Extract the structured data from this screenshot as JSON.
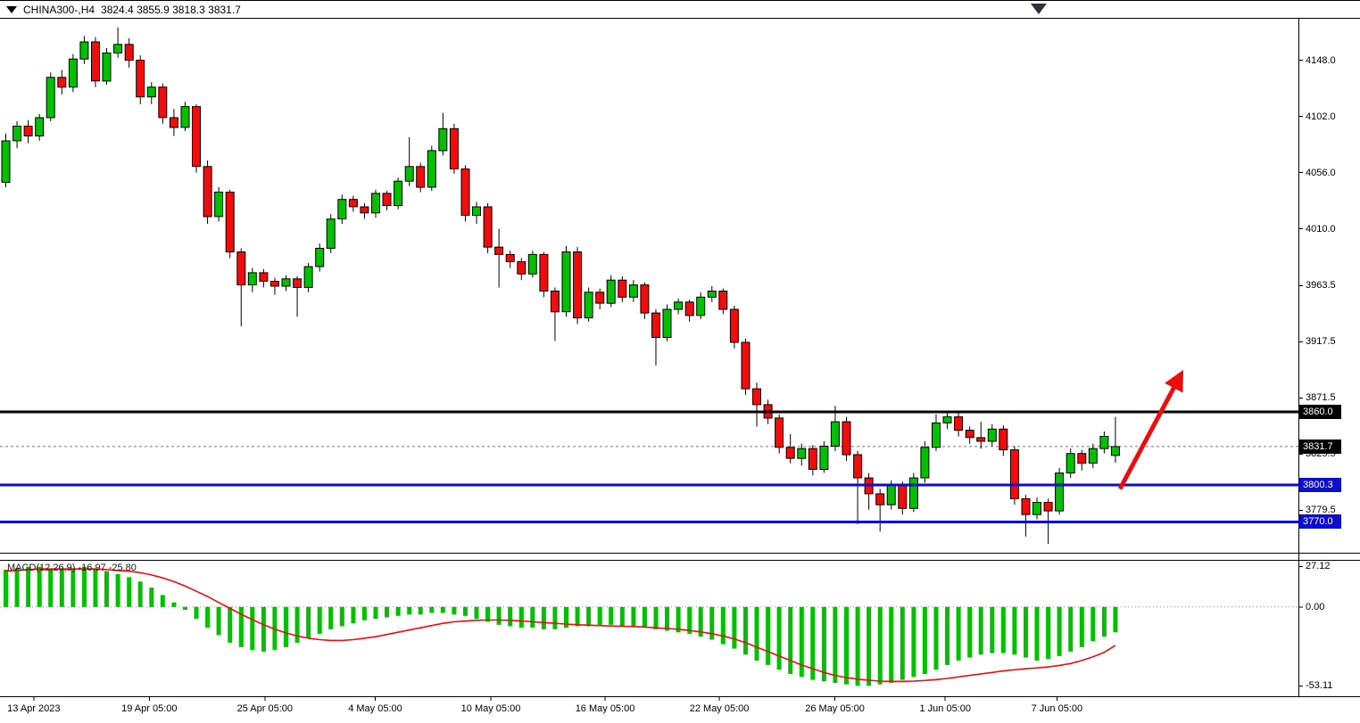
{
  "header": {
    "symbol": "CHINA300-,H4",
    "ohlc_text": "3824.4 3855.9 3818.3 3831.7"
  },
  "chart_data": [
    {
      "type": "candlestick",
      "title": "CHINA300-,H4",
      "ylim": [
        3744,
        4182
      ],
      "y_ticks": [
        4148.0,
        4102.0,
        4056.0,
        4010.0,
        3963.5,
        3917.5,
        3871.5,
        3825.5,
        3779.5
      ],
      "x_labels": [
        {
          "text": "13 Apr 2023",
          "pos": 0.026
        },
        {
          "text": "19 Apr 05:00",
          "pos": 0.115
        },
        {
          "text": "25 Apr 05:00",
          "pos": 0.204
        },
        {
          "text": "4 May 05:00",
          "pos": 0.289
        },
        {
          "text": "10 May 05:00",
          "pos": 0.378
        },
        {
          "text": "16 May 05:00",
          "pos": 0.466
        },
        {
          "text": "22 May 05:00",
          "pos": 0.554
        },
        {
          "text": "26 May 05:00",
          "pos": 0.643
        },
        {
          "text": "1 Jun 05:00",
          "pos": 0.728
        },
        {
          "text": "7 Jun 05:00",
          "pos": 0.814
        }
      ],
      "candles": [
        [
          4048,
          4088,
          4044,
          4082
        ],
        [
          4082,
          4098,
          4076,
          4094
        ],
        [
          4094,
          4099,
          4080,
          4086
        ],
        [
          4086,
          4104,
          4082,
          4101
        ],
        [
          4101,
          4138,
          4098,
          4134
        ],
        [
          4134,
          4140,
          4120,
          4126
        ],
        [
          4126,
          4153,
          4122,
          4149
        ],
        [
          4149,
          4168,
          4145,
          4163
        ],
        [
          4163,
          4167,
          4126,
          4131
        ],
        [
          4131,
          4158,
          4128,
          4154
        ],
        [
          4154,
          4175,
          4150,
          4161
        ],
        [
          4161,
          4166,
          4142,
          4148
        ],
        [
          4148,
          4152,
          4112,
          4118
        ],
        [
          4118,
          4130,
          4112,
          4126
        ],
        [
          4126,
          4129,
          4096,
          4101
        ],
        [
          4101,
          4108,
          4086,
          4093
        ],
        [
          4093,
          4114,
          4090,
          4110
        ],
        [
          4110,
          4112,
          4056,
          4061
        ],
        [
          4061,
          4066,
          4014,
          4020
        ],
        [
          4020,
          4044,
          4016,
          4040
        ],
        [
          4040,
          4042,
          3986,
          3991
        ],
        [
          3991,
          3994,
          3930,
          3964
        ],
        [
          3964,
          3978,
          3958,
          3974
        ],
        [
          3974,
          3977,
          3962,
          3967
        ],
        [
          3967,
          3970,
          3956,
          3963
        ],
        [
          3963,
          3972,
          3959,
          3969
        ],
        [
          3969,
          3971,
          3938,
          3962
        ],
        [
          3962,
          3982,
          3958,
          3979
        ],
        [
          3979,
          3998,
          3975,
          3994
        ],
        [
          3994,
          4022,
          3990,
          4018
        ],
        [
          4018,
          4038,
          4014,
          4034
        ],
        [
          4034,
          4037,
          4024,
          4028
        ],
        [
          4028,
          4031,
          4018,
          4023
        ],
        [
          4023,
          4042,
          4019,
          4039
        ],
        [
          4039,
          4041,
          4025,
          4029
        ],
        [
          4029,
          4052,
          4026,
          4049
        ],
        [
          4049,
          4085,
          4045,
          4061
        ],
        [
          4061,
          4064,
          4040,
          4044
        ],
        [
          4044,
          4078,
          4041,
          4074
        ],
        [
          4074,
          4105,
          4070,
          4092
        ],
        [
          4092,
          4096,
          4055,
          4059
        ],
        [
          4059,
          4062,
          4016,
          4021
        ],
        [
          4021,
          4032,
          4014,
          4028
        ],
        [
          4028,
          4031,
          3990,
          3995
        ],
        [
          3995,
          4010,
          3962,
          3989
        ],
        [
          3989,
          3992,
          3978,
          3983
        ],
        [
          3983,
          3986,
          3968,
          3973
        ],
        [
          3973,
          3992,
          3970,
          3989
        ],
        [
          3989,
          3991,
          3954,
          3959
        ],
        [
          3959,
          3962,
          3918,
          3942
        ],
        [
          3942,
          3996,
          3938,
          3991
        ],
        [
          3991,
          3995,
          3932,
          3937
        ],
        [
          3937,
          3962,
          3934,
          3958
        ],
        [
          3958,
          3961,
          3944,
          3949
        ],
        [
          3949,
          3972,
          3946,
          3968
        ],
        [
          3968,
          3971,
          3950,
          3954
        ],
        [
          3954,
          3968,
          3950,
          3964
        ],
        [
          3964,
          3966,
          3936,
          3941
        ],
        [
          3941,
          3944,
          3898,
          3921
        ],
        [
          3921,
          3948,
          3918,
          3944
        ],
        [
          3944,
          3953,
          3940,
          3950
        ],
        [
          3950,
          3952,
          3934,
          3939
        ],
        [
          3939,
          3958,
          3936,
          3954
        ],
        [
          3954,
          3963,
          3950,
          3959
        ],
        [
          3959,
          3961,
          3940,
          3944
        ],
        [
          3944,
          3947,
          3912,
          3917
        ],
        [
          3917,
          3920,
          3874,
          3879
        ],
        [
          3879,
          3884,
          3848,
          3866
        ],
        [
          3866,
          3870,
          3850,
          3855
        ],
        [
          3855,
          3858,
          3826,
          3831
        ],
        [
          3831,
          3842,
          3818,
          3822
        ],
        [
          3822,
          3834,
          3816,
          3830
        ],
        [
          3830,
          3833,
          3808,
          3813
        ],
        [
          3813,
          3836,
          3810,
          3832
        ],
        [
          3832,
          3865,
          3828,
          3852
        ],
        [
          3852,
          3856,
          3820,
          3825
        ],
        [
          3825,
          3828,
          3768,
          3806
        ],
        [
          3806,
          3810,
          3780,
          3793
        ],
        [
          3793,
          3797,
          3762,
          3784
        ],
        [
          3784,
          3804,
          3780,
          3800
        ],
        [
          3800,
          3803,
          3776,
          3781
        ],
        [
          3781,
          3810,
          3778,
          3806
        ],
        [
          3806,
          3836,
          3802,
          3831
        ],
        [
          3831,
          3858,
          3828,
          3851
        ],
        [
          3851,
          3861,
          3846,
          3856
        ],
        [
          3856,
          3859,
          3840,
          3845
        ],
        [
          3845,
          3848,
          3834,
          3839
        ],
        [
          3839,
          3852,
          3830,
          3836
        ],
        [
          3836,
          3850,
          3832,
          3846
        ],
        [
          3846,
          3849,
          3824,
          3829
        ],
        [
          3829,
          3832,
          3784,
          3789
        ],
        [
          3789,
          3792,
          3758,
          3776
        ],
        [
          3776,
          3790,
          3772,
          3786
        ],
        [
          3786,
          3789,
          3752,
          3779
        ],
        [
          3779,
          3814,
          3776,
          3810
        ],
        [
          3810,
          3830,
          3806,
          3826
        ],
        [
          3826,
          3829,
          3812,
          3818
        ],
        [
          3818,
          3834,
          3814,
          3830
        ],
        [
          3830,
          3844,
          3826,
          3840
        ],
        [
          3824.4,
          3855.9,
          3818.3,
          3831.7
        ]
      ],
      "hlines": [
        {
          "value": 3860.0,
          "label": "3860.0",
          "color": "#000000",
          "width": 3
        },
        {
          "value": 3800.3,
          "label": "3800.3",
          "color": "#0d0dd0",
          "width": 3
        },
        {
          "value": 3770.0,
          "label": "3770.0",
          "color": "#0d0dd0",
          "width": 3
        }
      ],
      "price_tag": {
        "value": 3831.7,
        "label": "3831.7",
        "bg": "#000000"
      },
      "bid_line_value": 3831.7,
      "arrow": {
        "from_index": 99.4,
        "from_price": 3797,
        "to_index": 104.8,
        "to_price": 3890,
        "color": "#ee0c0c",
        "width": 5
      },
      "colors": {
        "up": "#00c000",
        "down": "#f20c0c",
        "wick": "#000000"
      }
    },
    {
      "type": "macd",
      "label": "MACD(12,26,9)",
      "values_text": "-16.97 -25.80",
      "macd_value": -16.97,
      "signal_value": -25.8,
      "ylim": [
        -60,
        31
      ],
      "y_ticks": [
        {
          "v": 27.12,
          "label": "27.12"
        },
        {
          "v": 0,
          "label": "0.00"
        },
        {
          "v": -53.11,
          "label": "-53.11"
        }
      ],
      "histogram": [
        25,
        26,
        27,
        27,
        26,
        25,
        26,
        27,
        26,
        24,
        22,
        20,
        17,
        13,
        8,
        3,
        -2,
        -8,
        -14,
        -19,
        -24,
        -27,
        -29,
        -30,
        -29,
        -27,
        -24,
        -21,
        -18,
        -15,
        -13,
        -11,
        -9,
        -8,
        -7,
        -6,
        -5,
        -5,
        -4,
        -4,
        -5,
        -6,
        -8,
        -10,
        -12,
        -13,
        -14,
        -14,
        -15,
        -15,
        -14,
        -13,
        -13,
        -12,
        -12,
        -13,
        -13,
        -14,
        -15,
        -16,
        -17,
        -18,
        -20,
        -22,
        -25,
        -28,
        -32,
        -36,
        -39,
        -42,
        -45,
        -47,
        -49,
        -50,
        -51,
        -52,
        -53,
        -53,
        -52,
        -51,
        -49,
        -47,
        -45,
        -42,
        -39,
        -36,
        -34,
        -32,
        -31,
        -31,
        -32,
        -34,
        -36,
        -35,
        -33,
        -30,
        -27,
        -23,
        -20,
        -17
      ],
      "signal": [
        24,
        24.5,
        25,
        25.5,
        25.5,
        25.5,
        25.5,
        25.5,
        25.5,
        25,
        24.5,
        24,
        23,
        21.5,
        19.5,
        17,
        14,
        10.5,
        7,
        3,
        -1,
        -5,
        -8.5,
        -12,
        -15,
        -17.5,
        -19.5,
        -21,
        -22,
        -22.5,
        -22.5,
        -22,
        -21,
        -20,
        -18.5,
        -17,
        -15.5,
        -14,
        -12.5,
        -11,
        -10,
        -9.5,
        -9,
        -8.8,
        -8.8,
        -9,
        -9.5,
        -10,
        -10.5,
        -11,
        -11.5,
        -12,
        -12.3,
        -12.5,
        -12.8,
        -13,
        -13.2,
        -13.5,
        -14,
        -14.5,
        -15,
        -15.8,
        -16.8,
        -18,
        -19.5,
        -21.5,
        -24,
        -27,
        -30,
        -33,
        -36,
        -39,
        -41.5,
        -44,
        -46,
        -47.5,
        -48.5,
        -49.3,
        -49.8,
        -50,
        -50,
        -49.8,
        -49.4,
        -48.8,
        -48,
        -47,
        -46,
        -45,
        -44,
        -43,
        -42.2,
        -41.5,
        -41,
        -40.3,
        -39.3,
        -38,
        -36,
        -33.5,
        -30.5,
        -25.8
      ],
      "colors": {
        "histogram": "#00c000",
        "signal": "#f20c0c"
      }
    }
  ]
}
